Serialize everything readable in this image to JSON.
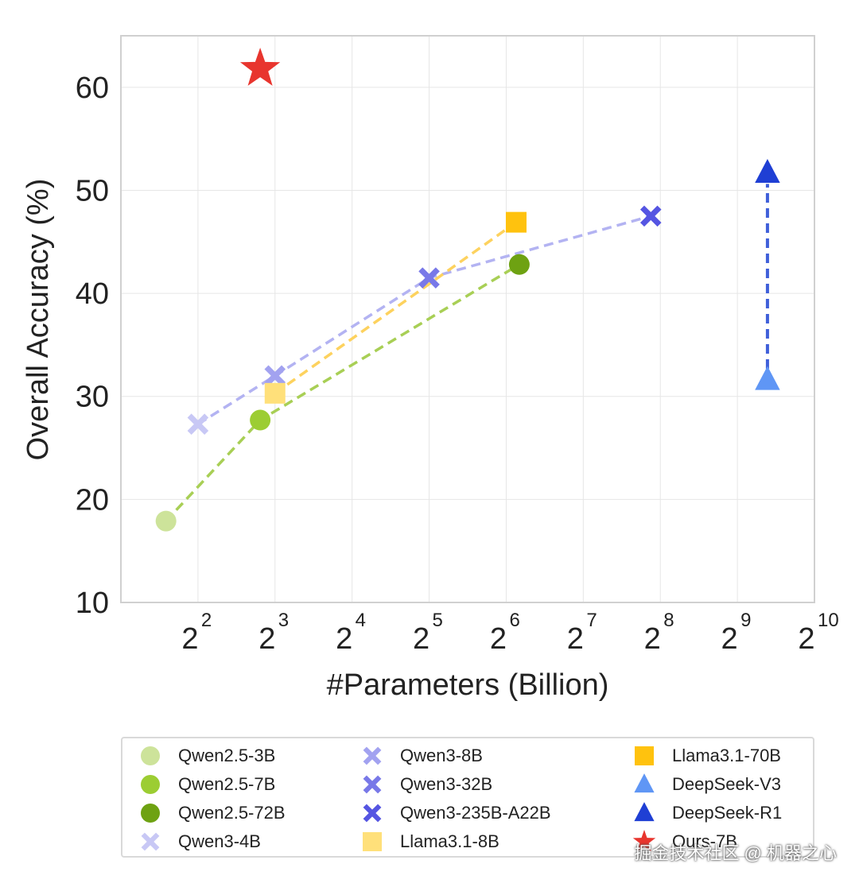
{
  "chart_data": {
    "type": "scatter",
    "title": "",
    "xlabel": "#Parameters (Billion)",
    "ylabel": "Overall Accuracy (%)",
    "xscale": "log2",
    "xlim": [
      2,
      1024
    ],
    "ylim": [
      10,
      65
    ],
    "x_ticks": [
      {
        "base": "2",
        "exp": "2",
        "value": 4
      },
      {
        "base": "2",
        "exp": "3",
        "value": 8
      },
      {
        "base": "2",
        "exp": "4",
        "value": 16
      },
      {
        "base": "2",
        "exp": "5",
        "value": 32
      },
      {
        "base": "2",
        "exp": "6",
        "value": 64
      },
      {
        "base": "2",
        "exp": "7",
        "value": 128
      },
      {
        "base": "2",
        "exp": "8",
        "value": 256
      },
      {
        "base": "2",
        "exp": "9",
        "value": 512
      },
      {
        "base": "2",
        "exp": "10",
        "value": 1024
      }
    ],
    "y_ticks": [
      10,
      20,
      30,
      40,
      50,
      60
    ],
    "grid": true,
    "legend_position": "bottom",
    "series": [
      {
        "name": "Qwen2.5-3B",
        "marker": "circle",
        "color": "#cde39a",
        "x": 3,
        "y": 17.9
      },
      {
        "name": "Qwen2.5-7B",
        "marker": "circle",
        "color": "#9ccd33",
        "x": 7,
        "y": 27.7
      },
      {
        "name": "Qwen2.5-72B",
        "marker": "circle",
        "color": "#6ea212",
        "x": 72,
        "y": 42.8
      },
      {
        "name": "Qwen3-4B",
        "marker": "x",
        "color": "#c8c8f5",
        "x": 4,
        "y": 27.3
      },
      {
        "name": "Qwen3-8B",
        "marker": "x",
        "color": "#a2a2f0",
        "x": 8,
        "y": 32.0
      },
      {
        "name": "Qwen3-32B",
        "marker": "x",
        "color": "#7878e8",
        "x": 32,
        "y": 41.5
      },
      {
        "name": "Qwen3-235B-A22B",
        "marker": "x",
        "color": "#5555e2",
        "x": 235,
        "y": 47.5
      },
      {
        "name": "Llama3.1-8B",
        "marker": "square",
        "color": "#ffe07a",
        "x": 8,
        "y": 30.3
      },
      {
        "name": "Llama3.1-70B",
        "marker": "square",
        "color": "#ffc20e",
        "x": 70,
        "y": 46.9
      },
      {
        "name": "DeepSeek-V3",
        "marker": "triangle",
        "color": "#5f96f5",
        "x": 671,
        "y": 31.6
      },
      {
        "name": "DeepSeek-R1",
        "marker": "triangle",
        "color": "#1f3fd4",
        "x": 671,
        "y": 51.7
      },
      {
        "name": "Ours-7B",
        "marker": "star",
        "color": "#e8352e",
        "x": 7,
        "y": 61.8
      }
    ],
    "connectors": [
      {
        "group": "Qwen2.5",
        "color": "#a8cf55",
        "points": [
          "Qwen2.5-3B",
          "Qwen2.5-7B",
          "Qwen2.5-72B"
        ]
      },
      {
        "group": "Qwen3",
        "color": "#b3b3f2",
        "points": [
          "Qwen3-4B",
          "Qwen3-8B",
          "Qwen3-32B",
          "Qwen3-235B-A22B"
        ]
      },
      {
        "group": "Llama3.1",
        "color": "#fdd25e",
        "points": [
          "Llama3.1-8B",
          "Llama3.1-70B"
        ]
      },
      {
        "group": "DeepSeek",
        "color": "#3f5fd9",
        "points": [
          "DeepSeek-V3",
          "DeepSeek-R1"
        ],
        "arrow": true
      }
    ]
  },
  "legend": {
    "items": [
      {
        "label": "Qwen2.5-3B",
        "marker": "circle",
        "color": "#cde39a"
      },
      {
        "label": "Qwen2.5-7B",
        "marker": "circle",
        "color": "#9ccd33"
      },
      {
        "label": "Qwen2.5-72B",
        "marker": "circle",
        "color": "#6ea212"
      },
      {
        "label": "Qwen3-4B",
        "marker": "x",
        "color": "#c8c8f5"
      },
      {
        "label": "Qwen3-8B",
        "marker": "x",
        "color": "#a2a2f0"
      },
      {
        "label": "Qwen3-32B",
        "marker": "x",
        "color": "#7878e8"
      },
      {
        "label": "Qwen3-235B-A22B",
        "marker": "x",
        "color": "#5555e2"
      },
      {
        "label": "Llama3.1-8B",
        "marker": "square",
        "color": "#ffe07a"
      },
      {
        "label": "Llama3.1-70B",
        "marker": "square",
        "color": "#ffc20e"
      },
      {
        "label": "DeepSeek-V3",
        "marker": "triangle",
        "color": "#5f96f5"
      },
      {
        "label": "DeepSeek-R1",
        "marker": "triangle",
        "color": "#1f3fd4"
      },
      {
        "label": "Ours-7B",
        "marker": "star",
        "color": "#e8352e"
      }
    ]
  },
  "watermark": "掘金技术社区 @ 机器之心"
}
